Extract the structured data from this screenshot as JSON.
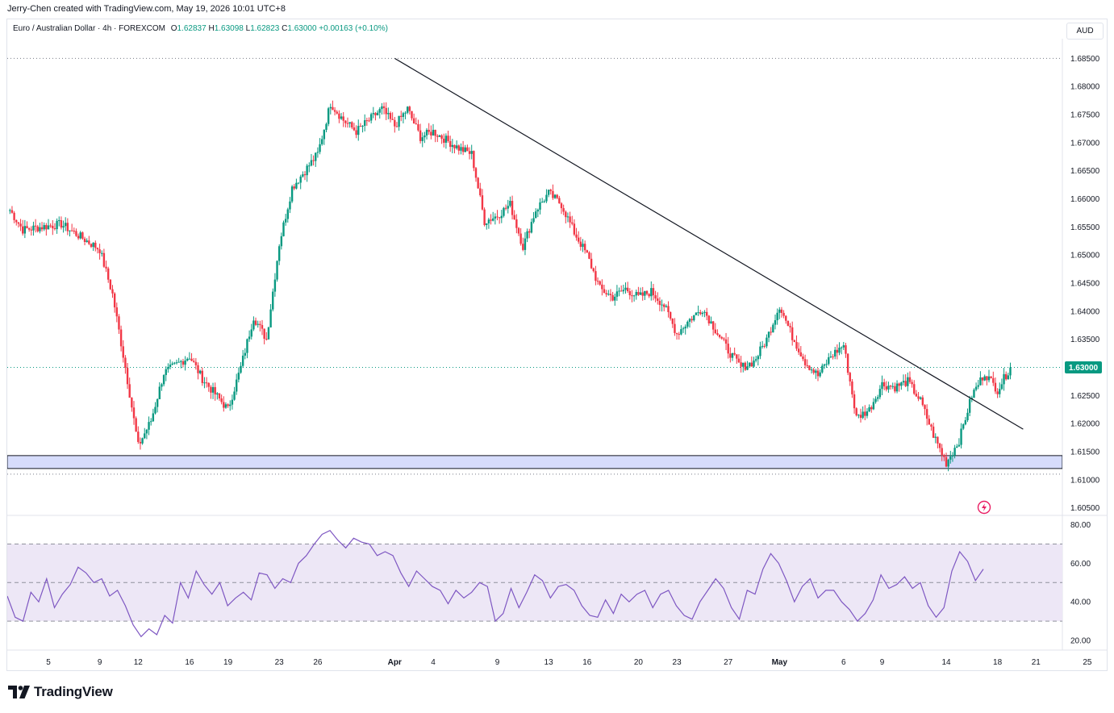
{
  "header": {
    "attribution": "Jerry-Chen created with TradingView.com, May 19, 2026 10:01 UTC+8"
  },
  "symbol": {
    "name": "Euro / Australian Dollar · 4h · FOREXCOM",
    "open_label": "O",
    "open": "1.62837",
    "high_label": "H",
    "high": "1.63098",
    "low_label": "L",
    "low": "1.62823",
    "close_label": "C",
    "close": "1.63000",
    "change": "+0.00163 (+0.10%)"
  },
  "currency_button": "AUD",
  "brand": "TradingView",
  "colors": {
    "up": "#089981",
    "down": "#f23645",
    "rsi_line": "#7e57c2",
    "rsi_band": "#ede7f6",
    "support_zone": "#d6dcfb",
    "trendline": "#131722"
  },
  "chart_data": [
    {
      "type": "candlestick",
      "title": "Euro / Australian Dollar · 4h · FOREXCOM",
      "price_axis_ticks": [
        "1.68500",
        "1.68000",
        "1.67500",
        "1.67000",
        "1.66500",
        "1.66000",
        "1.65500",
        "1.65000",
        "1.64500",
        "1.64000",
        "1.63500",
        "1.63000",
        "1.62500",
        "1.62000",
        "1.61500",
        "1.61000",
        "1.60500"
      ],
      "time_axis_ticks": [
        "5",
        "9",
        "12",
        "16",
        "19",
        "23",
        "26",
        "Apr",
        "4",
        "9",
        "13",
        "16",
        "20",
        "23",
        "27",
        "May",
        "6",
        "9",
        "14",
        "18",
        "21",
        "25"
      ],
      "ylim": [
        1.6038,
        1.6885
      ],
      "last_price_label": "1.63000",
      "key_points": [
        {
          "date": "Mar 2",
          "close": 1.658
        },
        {
          "date": "Mar 3",
          "close": 1.6545
        },
        {
          "date": "Mar 6",
          "close": 1.6555
        },
        {
          "date": "Mar 9",
          "close": 1.651
        },
        {
          "date": "Mar 10",
          "close": 1.643
        },
        {
          "date": "Mar 11",
          "close": 1.63
        },
        {
          "date": "Mar 12",
          "close": 1.616
        },
        {
          "date": "Mar 13",
          "close": 1.6205
        },
        {
          "date": "Mar 14",
          "close": 1.629
        },
        {
          "date": "Mar 16",
          "close": 1.632
        },
        {
          "date": "Mar 17",
          "close": 1.628
        },
        {
          "date": "Mar 19",
          "close": 1.6225
        },
        {
          "date": "Mar 20",
          "close": 1.63
        },
        {
          "date": "Mar 21",
          "close": 1.639
        },
        {
          "date": "Mar 22",
          "close": 1.635
        },
        {
          "date": "Mar 23",
          "close": 1.652
        },
        {
          "date": "Mar 24",
          "close": 1.662
        },
        {
          "date": "Mar 25",
          "close": 1.665
        },
        {
          "date": "Mar 26",
          "close": 1.668
        },
        {
          "date": "Mar 27",
          "close": 1.677
        },
        {
          "date": "Mar 28",
          "close": 1.674
        },
        {
          "date": "Mar 29",
          "close": 1.672
        },
        {
          "date": "Mar 31",
          "close": 1.676
        },
        {
          "date": "Apr 1",
          "close": 1.673
        },
        {
          "date": "Apr 2",
          "close": 1.676
        },
        {
          "date": "Apr 3",
          "close": 1.671
        },
        {
          "date": "Apr 4",
          "close": 1.672
        },
        {
          "date": "Apr 6",
          "close": 1.669
        },
        {
          "date": "Apr 7",
          "close": 1.668
        },
        {
          "date": "Apr 8",
          "close": 1.656
        },
        {
          "date": "Apr 9",
          "close": 1.657
        },
        {
          "date": "Apr 10",
          "close": 1.659
        },
        {
          "date": "Apr 11",
          "close": 1.6515
        },
        {
          "date": "Apr 12",
          "close": 1.658
        },
        {
          "date": "Apr 13",
          "close": 1.661
        },
        {
          "date": "Apr 14",
          "close": 1.659
        },
        {
          "date": "Apr 15",
          "close": 1.654
        },
        {
          "date": "Apr 16",
          "close": 1.65
        },
        {
          "date": "Apr 17",
          "close": 1.644
        },
        {
          "date": "Apr 18",
          "close": 1.6425
        },
        {
          "date": "Apr 19",
          "close": 1.644
        },
        {
          "date": "Apr 20",
          "close": 1.6425
        },
        {
          "date": "Apr 21",
          "close": 1.6435
        },
        {
          "date": "Apr 22",
          "close": 1.641
        },
        {
          "date": "Apr 23",
          "close": 1.636
        },
        {
          "date": "Apr 24",
          "close": 1.6385
        },
        {
          "date": "Apr 25",
          "close": 1.6405
        },
        {
          "date": "Apr 27",
          "close": 1.633
        },
        {
          "date": "Apr 28",
          "close": 1.63
        },
        {
          "date": "Apr 29",
          "close": 1.631
        },
        {
          "date": "Apr 30",
          "close": 1.635
        },
        {
          "date": "May 1",
          "close": 1.641
        },
        {
          "date": "May 2",
          "close": 1.6355
        },
        {
          "date": "May 3",
          "close": 1.631
        },
        {
          "date": "May 4",
          "close": 1.6285
        },
        {
          "date": "May 5",
          "close": 1.632
        },
        {
          "date": "May 6",
          "close": 1.634
        },
        {
          "date": "May 7",
          "close": 1.621
        },
        {
          "date": "May 8",
          "close": 1.6225
        },
        {
          "date": "May 9",
          "close": 1.627
        },
        {
          "date": "May 10",
          "close": 1.6265
        },
        {
          "date": "May 11",
          "close": 1.6275
        },
        {
          "date": "May 12",
          "close": 1.624
        },
        {
          "date": "May 13",
          "close": 1.618
        },
        {
          "date": "May 14",
          "close": 1.613
        },
        {
          "date": "May 15",
          "close": 1.617
        },
        {
          "date": "May 16",
          "close": 1.625
        },
        {
          "date": "May 17",
          "close": 1.629
        },
        {
          "date": "May 18",
          "close": 1.626
        },
        {
          "date": "May 19",
          "close": 1.63
        }
      ],
      "annotations": {
        "downtrend_line": [
          {
            "date": "Apr 1",
            "price": 1.685
          },
          {
            "date": "May 20",
            "price": 1.619
          }
        ],
        "support_zone": [
          1.612,
          1.6143
        ],
        "dotted_levels": [
          1.685,
          1.63,
          1.611
        ]
      }
    },
    {
      "type": "line",
      "title": "RSI",
      "ylim": [
        15,
        84
      ],
      "ticks": [
        "80.00",
        "60.00",
        "40.00",
        "20.00"
      ],
      "bands": [
        30,
        50,
        70
      ],
      "values": [
        43,
        32,
        30,
        45,
        40,
        52,
        37,
        44,
        49,
        58,
        55,
        50,
        52,
        43,
        46,
        38,
        28,
        22,
        26,
        23,
        33,
        29,
        50,
        42,
        56,
        49,
        44,
        50,
        38,
        42,
        45,
        41,
        55,
        54,
        47,
        52,
        50,
        60,
        64,
        70,
        75,
        77,
        72,
        68,
        73,
        71,
        70,
        64,
        66,
        64,
        55,
        48,
        56,
        52,
        48,
        46,
        39,
        46,
        42,
        45,
        50,
        48,
        30,
        34,
        47,
        37,
        45,
        54,
        51,
        42,
        48,
        49,
        46,
        38,
        33,
        32,
        41,
        34,
        44,
        40,
        44,
        46,
        37,
        44,
        46,
        38,
        33,
        31,
        40,
        46,
        52,
        47,
        37,
        31,
        46,
        44,
        57,
        65,
        60,
        51,
        40,
        48,
        52,
        42,
        46,
        46,
        40,
        36,
        30,
        34,
        41,
        54,
        47,
        49,
        53,
        47,
        50,
        38,
        32,
        37,
        56,
        66,
        61,
        51,
        57
      ]
    }
  ]
}
